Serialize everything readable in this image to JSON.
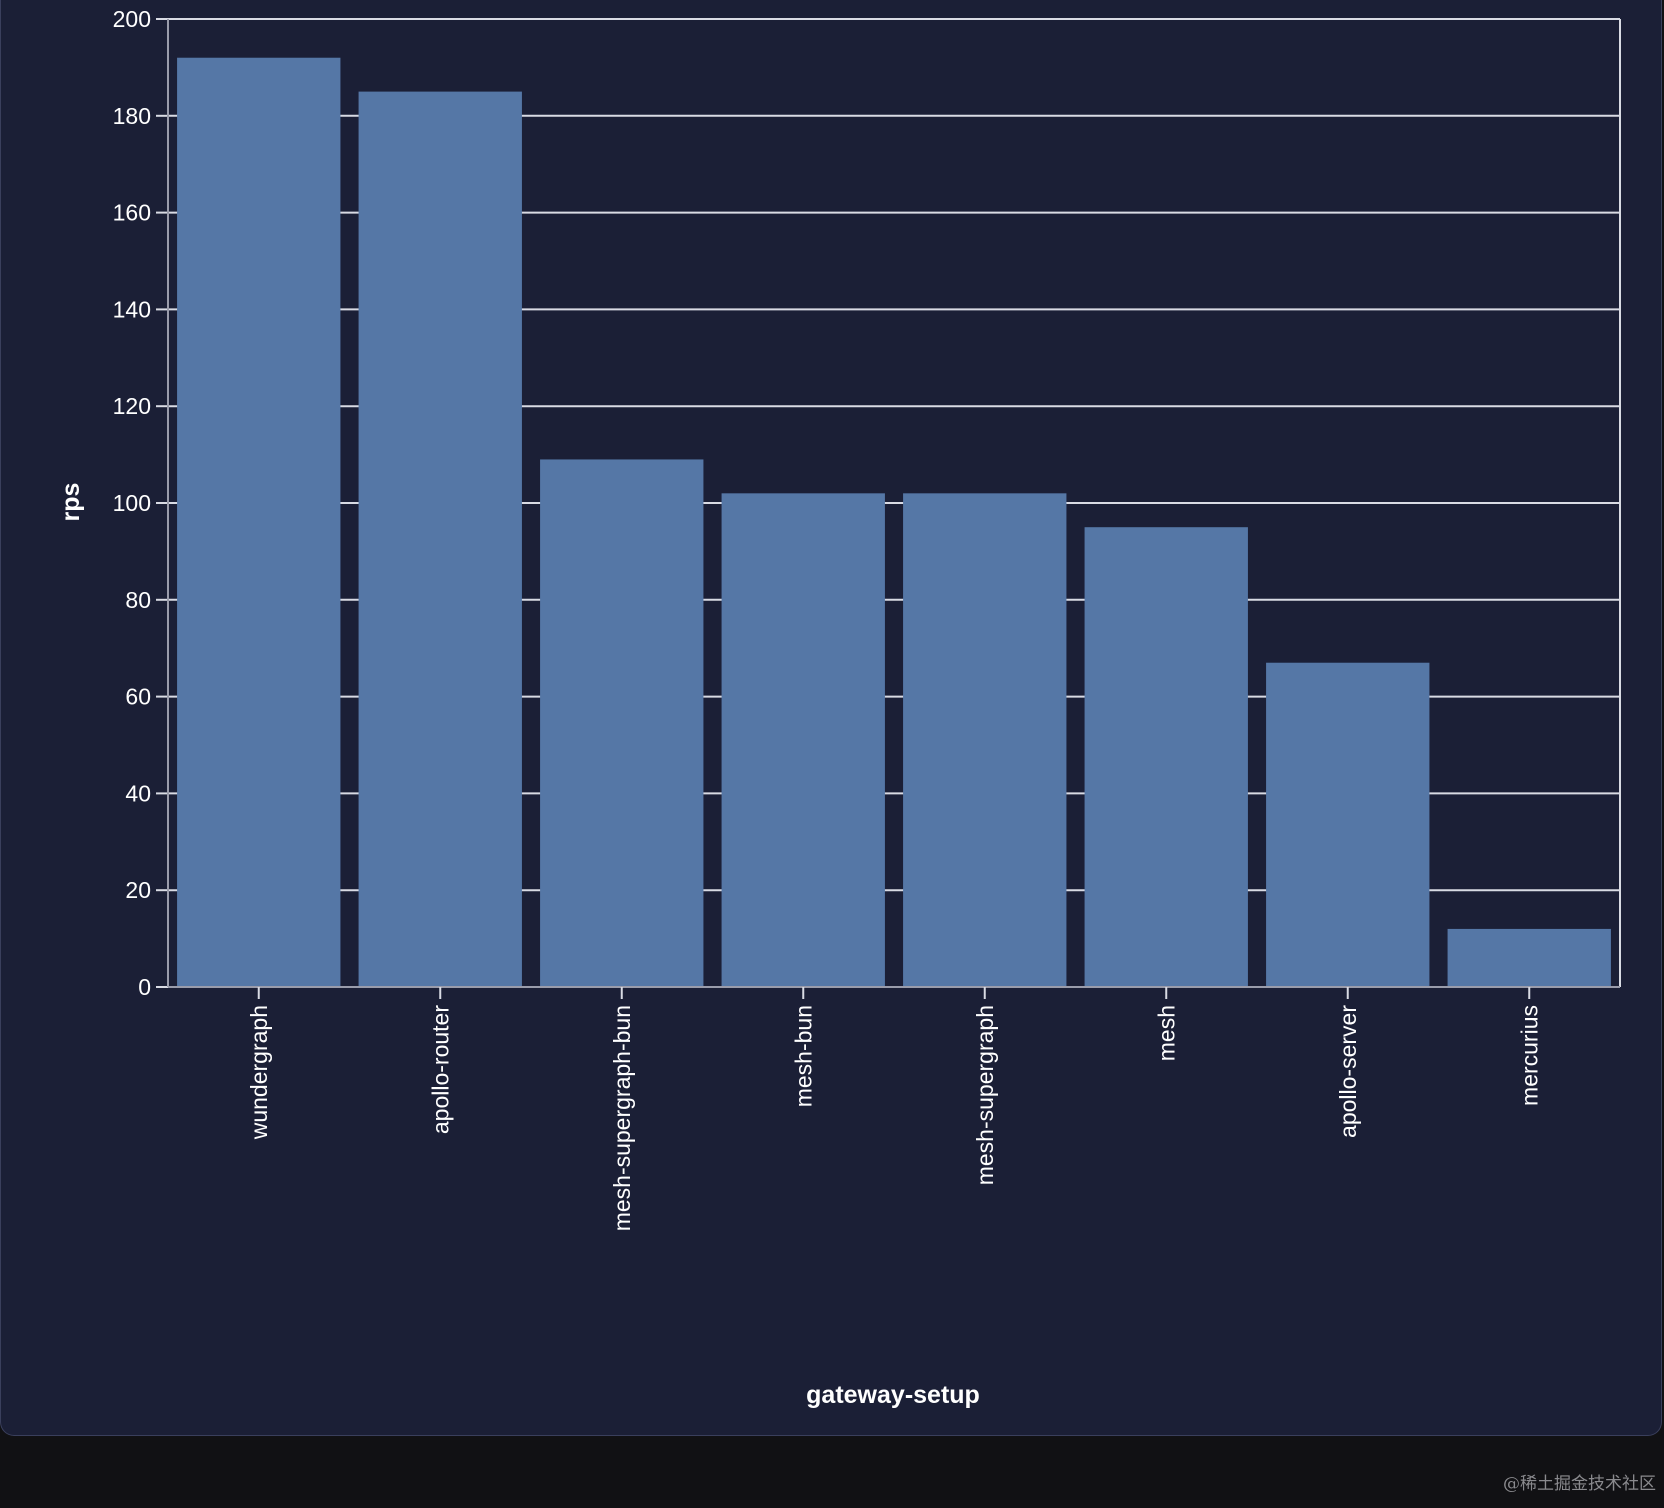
{
  "chart_data": {
    "type": "bar",
    "categories": [
      "wundergraph",
      "apollo-router",
      "mesh-supergraph-bun",
      "mesh-bun",
      "mesh-supergraph",
      "mesh",
      "apollo-server",
      "mercurius"
    ],
    "values": [
      192,
      185,
      109,
      102,
      102,
      95,
      67,
      12
    ],
    "xlabel": "gateway-setup",
    "ylabel": "rps",
    "ylim": [
      0,
      200
    ],
    "yticks": [
      0,
      20,
      40,
      60,
      80,
      100,
      120,
      140,
      160,
      180,
      200
    ],
    "grid": true,
    "colors": {
      "bar": "#5577a6",
      "background": "#1b1f36",
      "grid": "#d9dbe4",
      "text": "#ffffff"
    }
  },
  "watermark": "@稀土掘金技术社区"
}
